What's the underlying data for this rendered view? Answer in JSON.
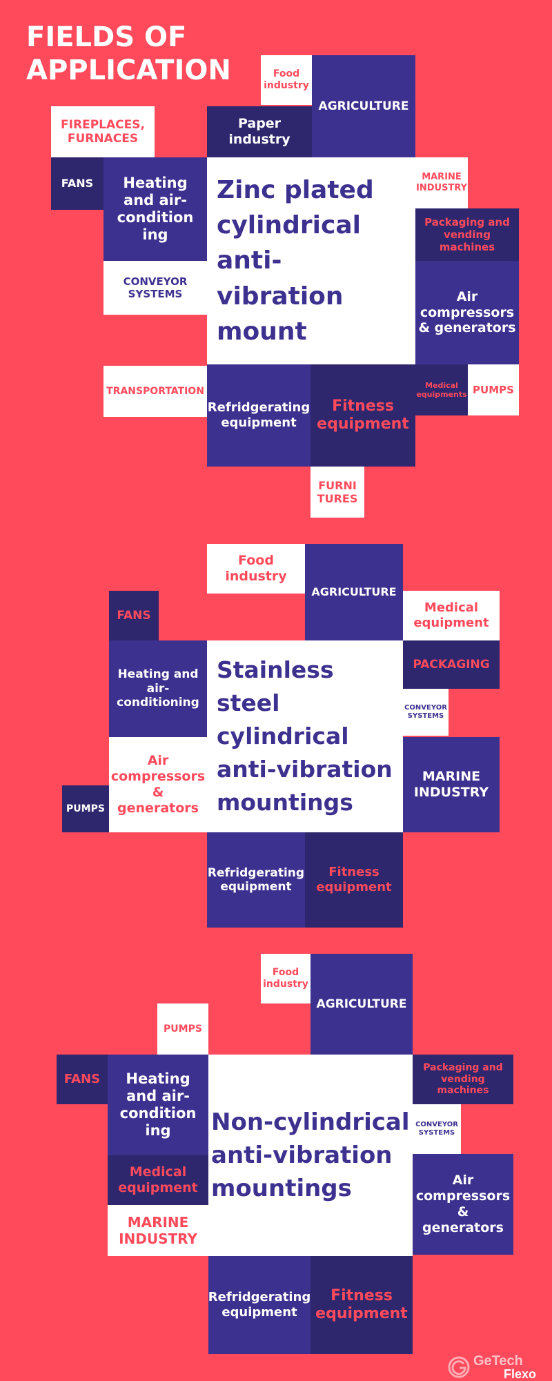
{
  "title": "FIELDS OF APPLICATION",
  "sections": [
    {
      "center": "Zinc plated cylindrical anti-vibration mount",
      "tiles": {
        "food_industry": "Food industry",
        "agriculture": "AGRICULTURE",
        "fireplaces": "FIREPLACES, FURNACES",
        "paper_industry": "Paper industry",
        "fans": "FANS",
        "heating": "Heating and air-condition ing",
        "marine": "MARINE INDUSTRY",
        "packaging": "Packaging and vending machines",
        "conveyor": "CONVEYOR SYSTEMS",
        "air_compressors": "Air compressors & generators",
        "transportation": "TRANSPORTATION",
        "refrigerating": "Refridgerating equipment",
        "fitness": "Fitness equipment",
        "medical": "Medical equipments",
        "pumps": "PUMPS",
        "furnitures": "FURNI TURES"
      }
    },
    {
      "center": "Stainless steel cylindrical anti-vibration mountings",
      "tiles": {
        "food_industry": "Food industry",
        "agriculture": "AGRICULTURE",
        "fans": "FANS",
        "medical": "Medical equipment",
        "heating": "Heating and air-conditioning",
        "packaging": "PACKAGING",
        "conveyor": "CONVEYOR SYSTEMS",
        "air_compressors": "Air compressors & generators",
        "marine": "MARINE INDUSTRY",
        "pumps": "PUMPS",
        "refrigerating": "Refridgerating equipment",
        "fitness": "Fitness equipment"
      }
    },
    {
      "center": "Non-cylindrical anti-vibration mountings",
      "tiles": {
        "food_industry": "Food industry",
        "agriculture": "AGRICULTURE",
        "pumps": "PUMPS",
        "fans": "FANS",
        "heating": "Heating and air-condition ing",
        "packaging": "Packaging and vending machines",
        "conveyor": "CONVEYOR SYSTEMS",
        "medical": "Medical equipment",
        "air_compressors": "Air compressors & generators",
        "marine": "MARINE INDUSTRY",
        "refrigerating": "Refridgerating equipment",
        "fitness": "Fitness equipment"
      }
    }
  ],
  "logo": {
    "brand": "GeTech",
    "product": "Flexo"
  },
  "colors": {
    "background": "#FF4A5C",
    "purple": "#3D3190",
    "dark_purple": "#2E276D",
    "white": "#FFFFFF"
  }
}
